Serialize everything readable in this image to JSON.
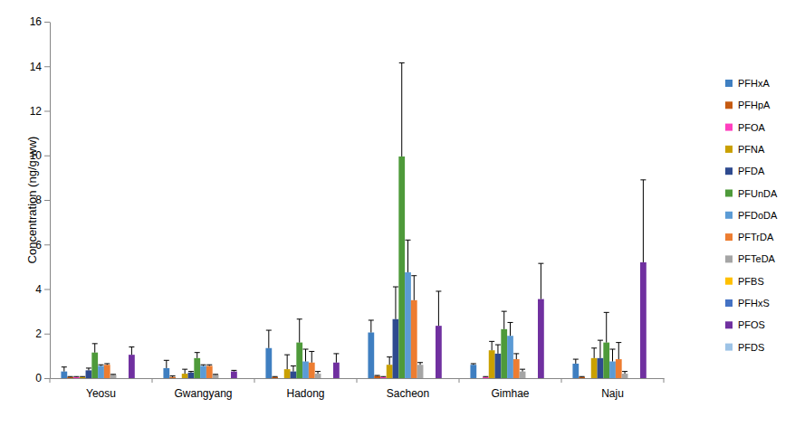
{
  "chart_data": {
    "type": "bar",
    "y_label": "Concentration (ng/g ww)",
    "categories": [
      "Yeosu",
      "Gwangyang",
      "Hadong",
      "Sacheon",
      "Gimhae",
      "Naju"
    ],
    "ylim": [
      0,
      16
    ],
    "yticks": [
      0,
      2,
      4,
      6,
      8,
      10,
      12,
      14,
      16
    ],
    "grid": false,
    "legend": "right",
    "series": [
      {
        "name": "PFHxA",
        "color": "#3f7fc1",
        "values": [
          0.3,
          0.45,
          1.35,
          2.05,
          0.6,
          0.65
        ],
        "errors": [
          0.2,
          0.35,
          0.8,
          0.55,
          0.05,
          0.2
        ]
      },
      {
        "name": "PFHpA",
        "color": "#c55a11",
        "values": [
          0.05,
          0.05,
          0.05,
          0.1,
          null,
          0.05
        ],
        "errors": [
          0.02,
          0.05,
          0.02,
          0.02,
          null,
          0.02
        ]
      },
      {
        "name": "PFOA",
        "color": "#ff3fbf",
        "values": [
          0.05,
          null,
          null,
          0.05,
          0.05,
          null
        ],
        "errors": [
          0.02,
          null,
          null,
          0.02,
          0.02,
          null
        ]
      },
      {
        "name": "PFNA",
        "color": "#c9a000",
        "values": [
          0.05,
          0.2,
          0.4,
          0.6,
          1.25,
          0.9
        ],
        "errors": [
          0.02,
          0.2,
          0.65,
          0.35,
          0.4,
          0.45
        ]
      },
      {
        "name": "PFDA",
        "color": "#2e4a8f",
        "values": [
          0.35,
          0.25,
          0.3,
          2.65,
          1.1,
          0.9
        ],
        "errors": [
          0.1,
          0.05,
          0.25,
          1.45,
          0.4,
          0.8
        ]
      },
      {
        "name": "PFUnDA",
        "color": "#4e9a3a",
        "values": [
          1.15,
          0.9,
          1.6,
          9.95,
          2.2,
          1.6
        ],
        "errors": [
          0.4,
          0.25,
          1.05,
          4.2,
          0.8,
          1.35
        ]
      },
      {
        "name": "PFDoDA",
        "color": "#5b9bd5",
        "values": [
          0.55,
          0.55,
          0.75,
          4.75,
          1.9,
          0.75
        ],
        "errors": [
          0.05,
          0.05,
          0.55,
          1.45,
          0.6,
          0.55
        ]
      },
      {
        "name": "PFTrDA",
        "color": "#ed7d31",
        "values": [
          0.6,
          0.55,
          0.7,
          3.5,
          0.85,
          0.85
        ],
        "errors": [
          0.05,
          0.05,
          0.5,
          1.1,
          0.25,
          0.75
        ]
      },
      {
        "name": "PFTeDA",
        "color": "#a5a5a5",
        "values": [
          0.15,
          0.15,
          0.2,
          0.6,
          0.3,
          0.2
        ],
        "errors": [
          0.02,
          0.02,
          0.1,
          0.1,
          0.1,
          0.1
        ]
      },
      {
        "name": "PFBS",
        "color": "#ffc000",
        "values": [
          null,
          null,
          null,
          null,
          null,
          null
        ],
        "errors": [
          null,
          null,
          null,
          null,
          null,
          null
        ]
      },
      {
        "name": "PFHxS",
        "color": "#4472c4",
        "values": [
          null,
          null,
          null,
          null,
          null,
          null
        ],
        "errors": [
          null,
          null,
          null,
          null,
          null,
          null
        ]
      },
      {
        "name": "PFOS",
        "color": "#7030a0",
        "values": [
          1.05,
          0.3,
          0.7,
          2.35,
          3.55,
          5.2
        ],
        "errors": [
          0.35,
          0.05,
          0.4,
          1.55,
          1.6,
          3.7
        ]
      },
      {
        "name": "PFDS",
        "color": "#9dc3e6",
        "values": [
          null,
          null,
          null,
          null,
          null,
          null
        ],
        "errors": [
          null,
          null,
          null,
          null,
          null,
          null
        ]
      }
    ]
  }
}
